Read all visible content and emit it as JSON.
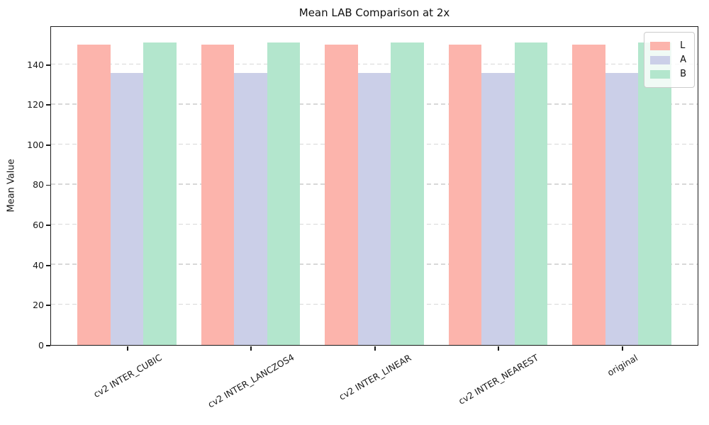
{
  "figure": {
    "title": "Mean LAB Comparison at 2x",
    "ylabel": "Mean Value"
  },
  "chart_data": {
    "type": "bar",
    "title": "Mean LAB Comparison at 2x",
    "xlabel": "",
    "ylabel": "Mean Value",
    "categories": [
      "cv2 INTER_CUBIC",
      "cv2 INTER_LANCZOS4",
      "cv2 INTER_LINEAR",
      "cv2 INTER_NEAREST",
      "original"
    ],
    "series": [
      {
        "name": "L",
        "color": "#fcb4ac",
        "values": [
          149.7,
          149.7,
          149.7,
          149.7,
          149.7
        ]
      },
      {
        "name": "A",
        "color": "#cbcfe8",
        "values": [
          135.6,
          135.6,
          135.6,
          135.6,
          135.6
        ]
      },
      {
        "name": "B",
        "color": "#b3e6cd",
        "values": [
          151.1,
          151.1,
          151.1,
          151.1,
          151.1
        ]
      }
    ],
    "yticks": [
      0,
      20,
      40,
      60,
      80,
      100,
      120,
      140
    ],
    "ylim": [
      0,
      158.7
    ],
    "grid": "horizontal-dashed",
    "grid_color": "#d8d8d8",
    "axis_color": "#1a1a1a",
    "legend_position": "upper-right",
    "legend_entries": [
      "L",
      "A",
      "B"
    ],
    "xtick_rotation_deg": 30
  }
}
